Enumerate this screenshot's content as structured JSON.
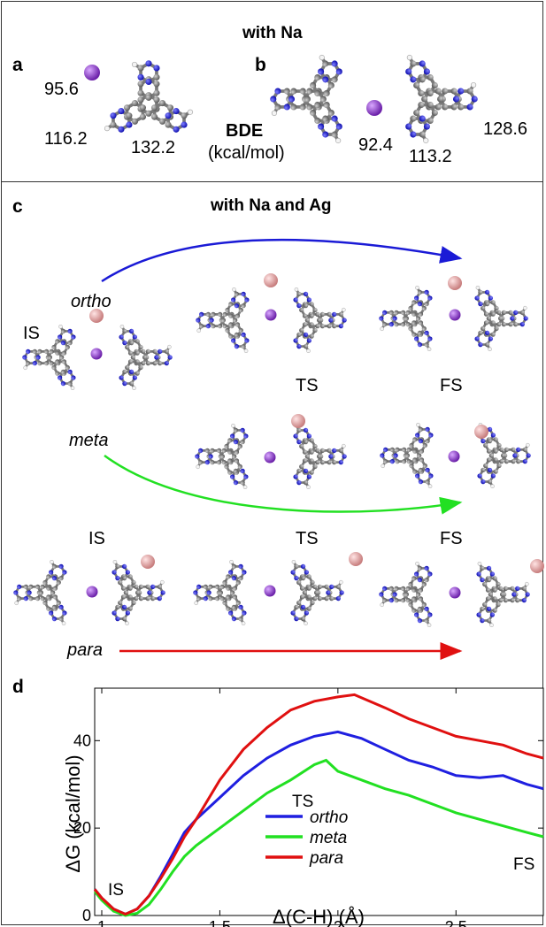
{
  "panels": {
    "a": "a",
    "b": "b",
    "c": "c",
    "d": "d",
    "top_title": "with Na",
    "c_title": "with Na and Ag"
  },
  "panel_a": {
    "bde": [
      "95.6",
      "116.2",
      "132.2"
    ],
    "bde_label": "BDE",
    "bde_unit": "(kcal/mol)"
  },
  "panel_b": {
    "bde": [
      "92.4",
      "113.2",
      "128.6"
    ]
  },
  "panel_c": {
    "is": "IS",
    "ts": "TS",
    "fs": "FS",
    "ortho": "ortho",
    "meta": "meta",
    "para": "para",
    "arrow_colors": {
      "ortho": "#1a1ad6",
      "meta": "#22e022",
      "para": "#e01010"
    }
  },
  "colors": {
    "na": "#9b3fd6",
    "ag": "#e8a9a9",
    "carbon": "#8c8c8c",
    "nitrogen": "#2a2ad8",
    "hydrogen": "#f2f2f2"
  },
  "chart_data": {
    "type": "line",
    "xlabel": "Δ(C-H) (Å)",
    "ylabel": "ΔG (kcal/mol)",
    "xlim": [
      0.97,
      2.87
    ],
    "ylim": [
      0,
      52
    ],
    "xticks": [
      1,
      1.5,
      2,
      2.5
    ],
    "yticks": [
      0,
      20,
      40
    ],
    "legend_position": "center",
    "annotations": [
      "IS",
      "TS",
      "FS"
    ],
    "series": [
      {
        "name": "ortho",
        "color": "#1f1fe0",
        "x": [
          0.97,
          1.0,
          1.05,
          1.1,
          1.15,
          1.2,
          1.25,
          1.3,
          1.35,
          1.4,
          1.5,
          1.6,
          1.7,
          1.8,
          1.9,
          2.0,
          2.1,
          2.2,
          2.3,
          2.4,
          2.5,
          2.6,
          2.7,
          2.8,
          2.87
        ],
        "y": [
          6,
          4,
          1.5,
          0.3,
          1.5,
          4.5,
          9,
          14,
          19,
          22,
          27,
          32,
          36,
          39,
          41,
          42,
          40.5,
          38,
          35.5,
          34,
          32,
          31.5,
          32,
          30,
          29
        ]
      },
      {
        "name": "meta",
        "color": "#22e022",
        "x": [
          0.97,
          1.0,
          1.05,
          1.1,
          1.15,
          1.2,
          1.25,
          1.3,
          1.35,
          1.4,
          1.5,
          1.6,
          1.7,
          1.8,
          1.9,
          1.95,
          2.0,
          2.1,
          2.2,
          2.3,
          2.4,
          2.5,
          2.6,
          2.7,
          2.8,
          2.87
        ],
        "y": [
          5.5,
          3.5,
          1,
          0,
          0.5,
          2.5,
          6,
          10,
          13.5,
          16,
          20,
          24,
          28,
          31,
          34.5,
          35.5,
          33,
          31,
          29,
          27.5,
          25.5,
          23.5,
          22,
          20.5,
          19,
          18
        ]
      },
      {
        "name": "para",
        "color": "#e01010",
        "x": [
          0.97,
          1.0,
          1.05,
          1.1,
          1.15,
          1.2,
          1.25,
          1.3,
          1.35,
          1.4,
          1.5,
          1.6,
          1.7,
          1.8,
          1.9,
          2.0,
          2.07,
          2.2,
          2.3,
          2.4,
          2.5,
          2.6,
          2.7,
          2.8,
          2.87
        ],
        "y": [
          6,
          4,
          1.5,
          0.3,
          1.5,
          4.5,
          8.5,
          13,
          18,
          22,
          31,
          38,
          43,
          47,
          49,
          50,
          50.5,
          47.5,
          45,
          43,
          41,
          40,
          39,
          37,
          36
        ]
      }
    ]
  }
}
